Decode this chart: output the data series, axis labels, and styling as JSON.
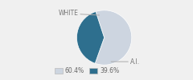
{
  "slices": [
    60.4,
    39.6
  ],
  "labels": [
    "WHITE",
    "A.I."
  ],
  "colors": [
    "#cdd5e0",
    "#2e6f8e"
  ],
  "legend_labels": [
    "60.4%",
    "39.6%"
  ],
  "background_color": "#f0f0f0",
  "start_angle": 108
}
